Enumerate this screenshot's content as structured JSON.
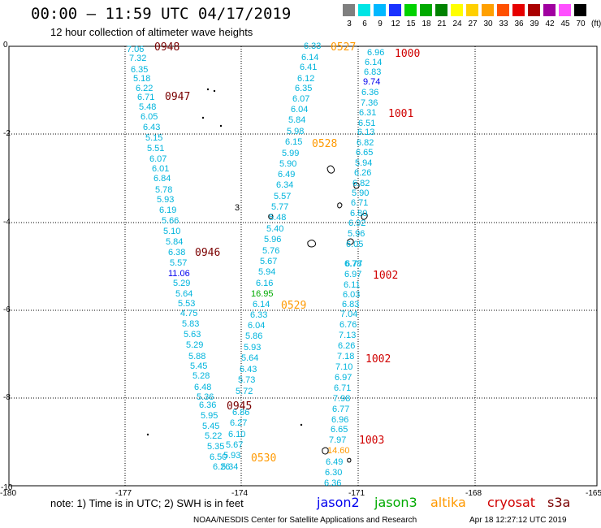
{
  "title": "00:00 – 11:59 UTC 04/17/2019",
  "subtitle": "12 hour collection of altimeter wave heights",
  "scale": {
    "labels": [
      "3",
      "6",
      "9",
      "12",
      "15",
      "18",
      "21",
      "24",
      "27",
      "30",
      "33",
      "36",
      "39",
      "42",
      "45",
      "70"
    ],
    "unit": "(ft)",
    "colors": [
      "#7f7f7f",
      "#00e5e5",
      "#00b8ff",
      "#1a32ff",
      "#00d200",
      "#00aa00",
      "#008200",
      "#ffff00",
      "#ffd000",
      "#ffa000",
      "#ff5000",
      "#e60000",
      "#aa0000",
      "#a000a0",
      "#ff50ff",
      "#000000"
    ]
  },
  "axes": {
    "y_labels": [
      "0",
      "-2",
      "-4",
      "-6",
      "-8",
      "-10"
    ],
    "x_labels": [
      "-180",
      "-177",
      "-174",
      "-171",
      "-168",
      "-165"
    ]
  },
  "colors": {
    "wave": "#00b4dc",
    "jason2": "#0000ee",
    "jason3": "#00aa00",
    "altika": "#ff9900",
    "cryosat": "#d00000",
    "s3a": "#7a0000"
  },
  "wave_points": [
    {
      "v": "7.06"
    },
    {
      "v": "7.32"
    },
    {
      "v": "6.35"
    },
    {
      "v": "5.18"
    },
    {
      "v": "6.22"
    },
    {
      "v": "6.71"
    },
    {
      "v": "5.48"
    },
    {
      "v": "6.05"
    },
    {
      "v": "6.43"
    },
    {
      "v": "5.15"
    },
    {
      "v": "5.51"
    },
    {
      "v": "6.07"
    },
    {
      "v": "6.01"
    },
    {
      "v": "6.84"
    },
    {
      "v": "5.78"
    },
    {
      "v": "5.93"
    },
    {
      "v": "6.19"
    },
    {
      "v": "5.66"
    },
    {
      "v": "5.10"
    },
    {
      "v": "5.84"
    },
    {
      "v": "6.38"
    },
    {
      "v": "5.57"
    },
    {
      "v": "11.06",
      "c": "jason2"
    },
    {
      "v": "5.29"
    },
    {
      "v": "5.64"
    },
    {
      "v": "5.53"
    },
    {
      "v": "4.75"
    },
    {
      "v": "5.83"
    },
    {
      "v": "5.63"
    },
    {
      "v": "5.29"
    },
    {
      "v": "5.88"
    },
    {
      "v": "5.45"
    },
    {
      "v": "5.28"
    },
    {
      "v": "6.48"
    },
    {
      "v": "5.36"
    },
    {
      "v": "6.36"
    },
    {
      "v": "5.95"
    },
    {
      "v": "5.45"
    },
    {
      "v": "5.22"
    },
    {
      "v": "5.35"
    },
    {
      "v": "6.50"
    },
    {
      "v": "6.26"
    },
    {
      "v": "6.33"
    },
    {
      "v": "6.14"
    },
    {
      "v": "6.41"
    },
    {
      "v": "6.12"
    },
    {
      "v": "6.35"
    },
    {
      "v": "6.07"
    },
    {
      "v": "6.04"
    },
    {
      "v": "5.84"
    },
    {
      "v": "5.98"
    },
    {
      "v": "6.15"
    },
    {
      "v": "5.99"
    },
    {
      "v": "5.90"
    },
    {
      "v": "6.49"
    },
    {
      "v": "6.34"
    },
    {
      "v": "5.57"
    },
    {
      "v": "5.77"
    },
    {
      "v": "5.48"
    },
    {
      "v": "5.40"
    },
    {
      "v": "5.96"
    },
    {
      "v": "5.76"
    },
    {
      "v": "5.67"
    },
    {
      "v": "5.94"
    },
    {
      "v": "6.16"
    },
    {
      "v": "16.95",
      "c": "jason3"
    },
    {
      "v": "6.14"
    },
    {
      "v": "6.33"
    },
    {
      "v": "6.04"
    },
    {
      "v": "5.86"
    },
    {
      "v": "5.93"
    },
    {
      "v": "5.64"
    },
    {
      "v": "6.43"
    },
    {
      "v": "5.73"
    },
    {
      "v": "5.72"
    },
    {
      "v": "6.86"
    },
    {
      "v": "6.27"
    },
    {
      "v": "6.10"
    },
    {
      "v": "5.67"
    },
    {
      "v": "5.93"
    },
    {
      "v": "5.34"
    },
    {
      "v": "6.96"
    },
    {
      "v": "6.14"
    },
    {
      "v": "6.83"
    },
    {
      "v": "9.74",
      "c": "jason2"
    },
    {
      "v": "6.36"
    },
    {
      "v": "7.36"
    },
    {
      "v": "6.31"
    },
    {
      "v": "6.51"
    },
    {
      "v": "6.13"
    },
    {
      "v": "6.82"
    },
    {
      "v": "6.65"
    },
    {
      "v": "5.94"
    },
    {
      "v": "6.26"
    },
    {
      "v": "6.82"
    },
    {
      "v": "5.90"
    },
    {
      "v": "6.71"
    },
    {
      "v": "6.80"
    },
    {
      "v": "6.92"
    },
    {
      "v": "5.96"
    },
    {
      "v": "6.05"
    },
    {
      "v": "6.77"
    },
    {
      "v": "6.78"
    },
    {
      "v": "6.97"
    },
    {
      "v": "6.11"
    },
    {
      "v": "6.03"
    },
    {
      "v": "6.83"
    },
    {
      "v": "7.04"
    },
    {
      "v": "6.76"
    },
    {
      "v": "7.13"
    },
    {
      "v": "6.26"
    },
    {
      "v": "7.18"
    },
    {
      "v": "7.10"
    },
    {
      "v": "6.97"
    },
    {
      "v": "6.71"
    },
    {
      "v": "7.98"
    },
    {
      "v": "6.77"
    },
    {
      "v": "6.96"
    },
    {
      "v": "6.65"
    },
    {
      "v": "7.97"
    },
    {
      "v": "14.60",
      "c": "altika"
    },
    {
      "v": "6.49"
    },
    {
      "v": "6.30"
    },
    {
      "v": "6.36"
    }
  ],
  "time_labels": [
    {
      "t": "0948",
      "sat": "s3a"
    },
    {
      "t": "0947",
      "sat": "s3a"
    },
    {
      "t": "0946",
      "sat": "s3a"
    },
    {
      "t": "0945",
      "sat": "s3a"
    },
    {
      "t": "0527",
      "sat": "altika"
    },
    {
      "t": "0528",
      "sat": "altika"
    },
    {
      "t": "0529",
      "sat": "altika"
    },
    {
      "t": "0530",
      "sat": "altika"
    },
    {
      "t": "1000",
      "sat": "cryosat"
    },
    {
      "t": "1001",
      "sat": "cryosat"
    },
    {
      "t": "1002",
      "sat": "cryosat"
    },
    {
      "t": "1002",
      "sat": "cryosat"
    },
    {
      "t": "1003",
      "sat": "cryosat"
    }
  ],
  "island_label": "3",
  "note": "note:  1) Time is in UTC;  2) SWH is in feet",
  "satellites": [
    "jason2",
    "jason3",
    "altika",
    "cryosat",
    "s3a"
  ],
  "footer": "NOAA/NESDIS Center for Satellite Applications and Research",
  "footer_date": "Apr 18 12:27:12 UTC 2019"
}
